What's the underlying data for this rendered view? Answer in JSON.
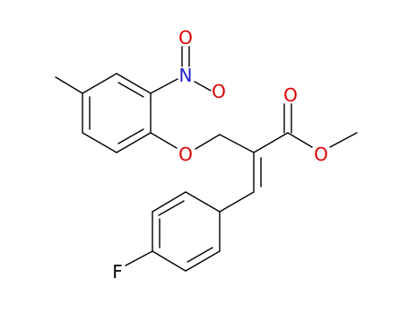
{
  "atoms": {
    "nitro_o1": "O",
    "nitro_n": "N",
    "nitro_o2": "O",
    "ether_o": "O",
    "carbonyl_o": "O",
    "ester_o": "O",
    "fluorine": "F"
  }
}
